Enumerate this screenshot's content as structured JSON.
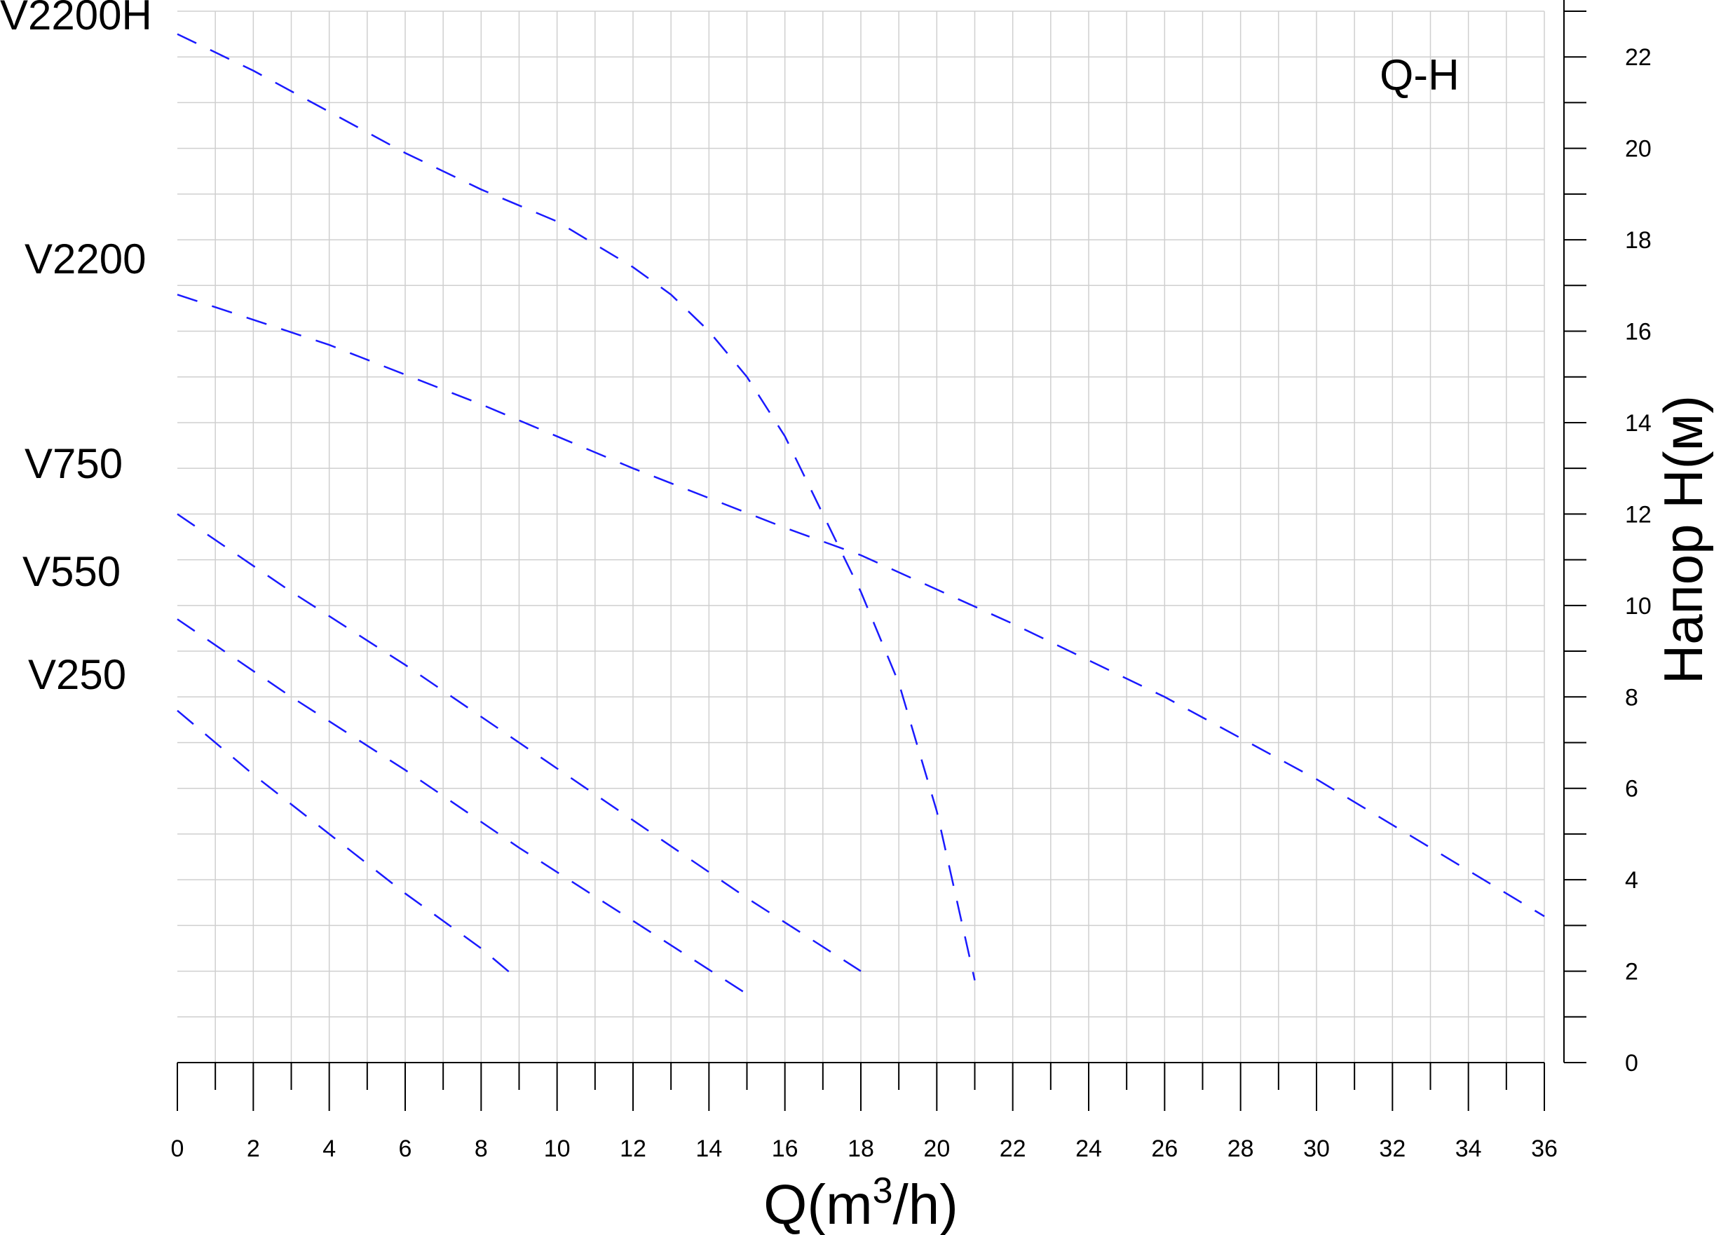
{
  "chart_data": {
    "type": "line",
    "title": "Q-H",
    "xlabel": "Q(m3/h)",
    "ylabel": "Напор H(м)",
    "xlim": [
      0,
      36
    ],
    "ylim": [
      0,
      23
    ],
    "x_ticks": [
      0,
      2,
      4,
      6,
      8,
      10,
      12,
      14,
      16,
      18,
      20,
      22,
      24,
      26,
      28,
      30,
      32,
      34,
      36
    ],
    "y_ticks": [
      0,
      2,
      4,
      6,
      8,
      10,
      12,
      14,
      16,
      18,
      20,
      22
    ],
    "grid": true,
    "line_style": "dashed",
    "line_color": "#1a1aff",
    "series": [
      {
        "name": "V2200H",
        "x": [
          0,
          2,
          4,
          6,
          8,
          10,
          11,
          12,
          13,
          14,
          15,
          16,
          17,
          18,
          19,
          20,
          21
        ],
        "y": [
          22.5,
          21.7,
          20.8,
          19.9,
          19.1,
          18.4,
          17.9,
          17.4,
          16.8,
          16.0,
          15.0,
          13.7,
          12.0,
          10.3,
          8.3,
          5.5,
          1.8
        ]
      },
      {
        "name": "V2200",
        "x": [
          0,
          4,
          8,
          12,
          16,
          18,
          22,
          26,
          30,
          34,
          36
        ],
        "y": [
          16.8,
          15.7,
          14.4,
          13.0,
          11.7,
          11.1,
          9.6,
          8.0,
          6.2,
          4.2,
          3.2
        ]
      },
      {
        "name": "V750",
        "x": [
          0,
          3,
          6,
          9,
          12,
          15,
          18
        ],
        "y": [
          12.0,
          10.3,
          8.7,
          7.0,
          5.3,
          3.6,
          2.0
        ]
      },
      {
        "name": "V550",
        "x": [
          0,
          3,
          6,
          9,
          12,
          15
        ],
        "y": [
          9.7,
          8.0,
          6.4,
          4.7,
          3.1,
          1.5
        ]
      },
      {
        "name": "V250",
        "x": [
          0,
          2,
          4,
          6,
          8,
          9
        ],
        "y": [
          7.7,
          6.3,
          5.0,
          3.7,
          2.5,
          1.8
        ]
      }
    ]
  }
}
